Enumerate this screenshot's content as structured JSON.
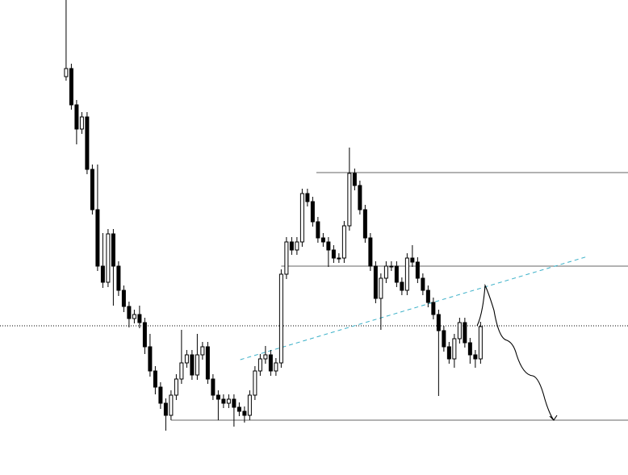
{
  "chart_data": {
    "type": "candlestick",
    "xlim": [
      -12.6,
      107.1
    ],
    "ylim": [
      0,
      589
    ],
    "open": [
      494,
      504,
      459,
      429,
      444,
      379,
      329,
      259,
      239,
      299,
      259,
      229,
      209,
      194,
      199,
      189,
      159,
      129,
      109,
      89,
      74,
      99,
      119,
      139,
      149,
      124,
      149,
      159,
      119,
      99,
      94,
      89,
      94,
      84,
      79,
      74,
      99,
      129,
      144,
      149,
      129,
      139,
      249,
      289,
      279,
      289,
      349,
      339,
      314,
      294,
      289,
      279,
      269,
      269,
      309,
      374,
      359,
      329,
      294,
      259,
      219,
      244,
      259,
      259,
      239,
      229,
      269,
      264,
      244,
      229,
      214,
      199,
      179,
      159,
      144,
      169,
      189,
      164,
      149,
      144
    ],
    "high": [
      589,
      510,
      465,
      450,
      450,
      385,
      385,
      300,
      305,
      305,
      265,
      235,
      215,
      205,
      210,
      195,
      175,
      135,
      115,
      95,
      105,
      125,
      180,
      155,
      155,
      175,
      165,
      165,
      125,
      105,
      100,
      100,
      100,
      90,
      85,
      105,
      135,
      150,
      160,
      155,
      145,
      255,
      295,
      295,
      295,
      355,
      355,
      345,
      320,
      300,
      295,
      285,
      275,
      315,
      406,
      380,
      365,
      335,
      300,
      265,
      250,
      265,
      265,
      265,
      245,
      275,
      285,
      270,
      250,
      235,
      220,
      205,
      185,
      165,
      175,
      195,
      195,
      170,
      155,
      190
    ],
    "low": [
      489,
      453,
      410,
      423,
      373,
      323,
      253,
      232,
      233,
      210,
      222,
      202,
      183,
      188,
      182,
      150,
      122,
      100,
      82,
      55,
      68,
      93,
      113,
      133,
      118,
      118,
      143,
      113,
      93,
      68,
      83,
      83,
      60,
      73,
      65,
      68,
      93,
      123,
      138,
      123,
      123,
      133,
      243,
      273,
      273,
      283,
      333,
      308,
      288,
      283,
      258,
      263,
      263,
      263,
      303,
      353,
      323,
      288,
      253,
      213,
      180,
      238,
      253,
      233,
      223,
      223,
      258,
      238,
      223,
      208,
      193,
      98,
      153,
      138,
      133,
      163,
      158,
      138,
      133,
      138
    ],
    "close": [
      504,
      459,
      429,
      444,
      379,
      329,
      259,
      239,
      299,
      259,
      229,
      209,
      194,
      199,
      189,
      159,
      129,
      109,
      89,
      74,
      99,
      119,
      139,
      149,
      124,
      149,
      159,
      119,
      99,
      94,
      89,
      94,
      84,
      79,
      74,
      99,
      129,
      144,
      149,
      129,
      139,
      249,
      289,
      279,
      289,
      349,
      339,
      314,
      294,
      289,
      279,
      269,
      269,
      309,
      374,
      359,
      329,
      294,
      259,
      219,
      244,
      259,
      259,
      239,
      229,
      269,
      264,
      244,
      229,
      214,
      199,
      179,
      159,
      144,
      169,
      189,
      164,
      149,
      144,
      184
    ],
    "levels": [
      {
        "start": 47.7,
        "value": 375
      },
      {
        "start": 41,
        "value": 259
      },
      {
        "start": 20,
        "value": 68
      }
    ],
    "current_price": 185,
    "trendline": {
      "start": [
        33.2,
        143
      ],
      "end": [
        99.4,
        271
      ],
      "color": "#3ab0c8"
    },
    "color": "#000000"
  }
}
